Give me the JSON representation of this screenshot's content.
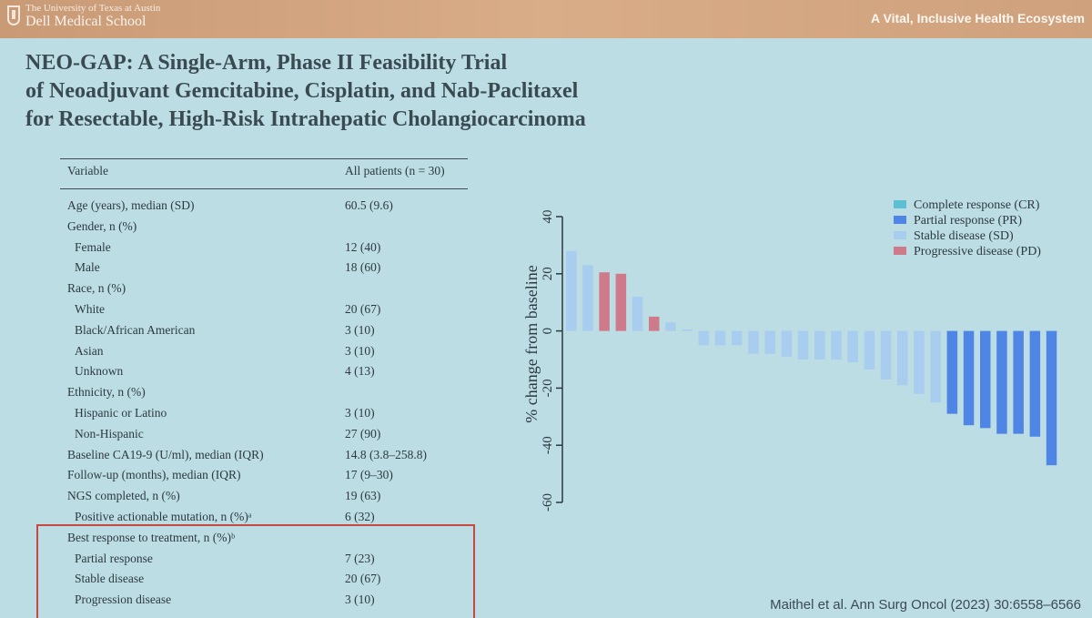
{
  "header": {
    "university": "The University of Texas at Austin",
    "school": "Dell Medical School",
    "tagline": "A Vital, Inclusive Health Ecosystem"
  },
  "title_lines": [
    "NEO-GAP: A Single-Arm, Phase II Feasibility Trial",
    "of Neoadjuvant Gemcitabine, Cisplatin, and Nab-Paclitaxel",
    "for Resectable, High-Risk Intrahepatic Cholangiocarcinoma"
  ],
  "table": {
    "col_variable": "Variable",
    "col_all": "All patients (n = 30)",
    "rows": [
      {
        "label": "Age (years), median (SD)",
        "value": "60.5 (9.6)",
        "indent": false
      },
      {
        "label": "Gender, n (%)",
        "value": "",
        "indent": false
      },
      {
        "label": "Female",
        "value": "12 (40)",
        "indent": true
      },
      {
        "label": "Male",
        "value": "18 (60)",
        "indent": true
      },
      {
        "label": "Race, n (%)",
        "value": "",
        "indent": false
      },
      {
        "label": "White",
        "value": "20 (67)",
        "indent": true
      },
      {
        "label": "Black/African American",
        "value": "3 (10)",
        "indent": true
      },
      {
        "label": "Asian",
        "value": "3 (10)",
        "indent": true
      },
      {
        "label": "Unknown",
        "value": "4 (13)",
        "indent": true
      },
      {
        "label": "Ethnicity, n (%)",
        "value": "",
        "indent": false
      },
      {
        "label": "Hispanic or Latino",
        "value": "3 (10)",
        "indent": true
      },
      {
        "label": "Non-Hispanic",
        "value": "27 (90)",
        "indent": true
      },
      {
        "label": "Baseline CA19-9 (U/ml), median (IQR)",
        "value": "14.8 (3.8–258.8)",
        "indent": false
      },
      {
        "label": "Follow-up (months), median (IQR)",
        "value": "17 (9–30)",
        "indent": false
      },
      {
        "label": "NGS completed, n (%)",
        "value": "19 (63)",
        "indent": false
      },
      {
        "label": "Positive actionable mutation, n (%)ᵃ",
        "value": "6 (32)",
        "indent": true
      },
      {
        "label": "Best response to treatment, n (%)ᵇ",
        "value": "",
        "indent": false
      },
      {
        "label": "Partial response",
        "value": "7 (23)",
        "indent": true
      },
      {
        "label": "Stable disease",
        "value": "20 (67)",
        "indent": true
      },
      {
        "label": "Progression disease",
        "value": "3 (10)",
        "indent": true
      }
    ]
  },
  "chart_data": {
    "type": "bar",
    "ylabel": "% change from baseline",
    "ylim": [
      -60,
      40
    ],
    "yticks": [
      "40",
      "20",
      "0",
      "-20",
      "-40",
      "-60"
    ],
    "categories": [
      "Complete response (CR)",
      "Partial response (PR)",
      "Stable disease (SD)",
      "Progressive disease (PD)"
    ],
    "colors": {
      "CR": "#5cbfd4",
      "PR": "#4f86e6",
      "SD": "#a8cdef",
      "PD": "#cf7a8a"
    },
    "bars": [
      {
        "value": 28,
        "response": "SD"
      },
      {
        "value": 23,
        "response": "SD"
      },
      {
        "value": 20.5,
        "response": "PD"
      },
      {
        "value": 20,
        "response": "PD"
      },
      {
        "value": 12,
        "response": "SD"
      },
      {
        "value": 5,
        "response": "PD"
      },
      {
        "value": 3,
        "response": "SD"
      },
      {
        "value": 0.5,
        "response": "SD"
      },
      {
        "value": -5,
        "response": "SD"
      },
      {
        "value": -5,
        "response": "SD"
      },
      {
        "value": -5,
        "response": "SD"
      },
      {
        "value": -8,
        "response": "SD"
      },
      {
        "value": -8,
        "response": "SD"
      },
      {
        "value": -9,
        "response": "SD"
      },
      {
        "value": -10,
        "response": "SD"
      },
      {
        "value": -10,
        "response": "SD"
      },
      {
        "value": -10,
        "response": "SD"
      },
      {
        "value": -11,
        "response": "SD"
      },
      {
        "value": -13.5,
        "response": "SD"
      },
      {
        "value": -17,
        "response": "SD"
      },
      {
        "value": -19,
        "response": "SD"
      },
      {
        "value": -22,
        "response": "SD"
      },
      {
        "value": -25,
        "response": "SD"
      },
      {
        "value": -29,
        "response": "PR"
      },
      {
        "value": -33,
        "response": "PR"
      },
      {
        "value": -34,
        "response": "PR"
      },
      {
        "value": -36,
        "response": "PR"
      },
      {
        "value": -36,
        "response": "PR"
      },
      {
        "value": -37,
        "response": "PR"
      },
      {
        "value": -47,
        "response": "PR"
      }
    ],
    "legend": [
      {
        "key": "CR",
        "label": "Complete response (CR)"
      },
      {
        "key": "PR",
        "label": "Partial response (PR)"
      },
      {
        "key": "SD",
        "label": "Stable disease (SD)"
      },
      {
        "key": "PD",
        "label": "Progressive disease (PD)"
      }
    ],
    "legend_position": "top-right",
    "grid": false
  },
  "citation": "Maithel et al.  Ann Surg Oncol (2023) 30:6558–6566"
}
